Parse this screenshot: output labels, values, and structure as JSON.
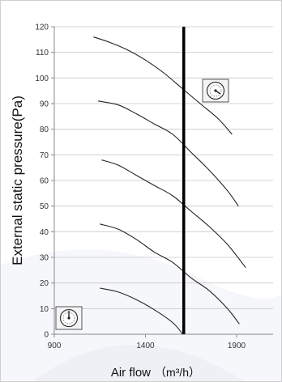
{
  "chart_data": {
    "type": "line",
    "title": "",
    "xlabel": "Air flow",
    "xlabel_unit": "（m³/h）",
    "ylabel": "External static pressure(Pa)",
    "xlim": [
      900,
      2100
    ],
    "ylim": [
      0,
      120
    ],
    "xticks": [
      "900",
      "1400",
      "1900"
    ],
    "xtick_values": [
      900,
      1400,
      1900
    ],
    "yticks": [
      "0",
      "10",
      "20",
      "30",
      "40",
      "50",
      "60",
      "70",
      "80",
      "90",
      "100",
      "110",
      "120"
    ],
    "ytick_values": [
      0,
      10,
      20,
      30,
      40,
      50,
      60,
      70,
      80,
      90,
      100,
      110,
      120
    ],
    "grid": "horizontal",
    "legend": "none",
    "series": [
      {
        "x": [
          1115,
          1200,
          1300,
          1400,
          1500,
          1600,
          1700,
          1800,
          1875
        ],
        "y": [
          116,
          114,
          111,
          107,
          102,
          96,
          90,
          84,
          78
        ]
      },
      {
        "x": [
          1140,
          1250,
          1350,
          1450,
          1550,
          1650,
          1750,
          1850,
          1910
        ],
        "y": [
          91,
          89.5,
          86,
          82,
          78,
          71,
          64,
          56,
          50
        ]
      },
      {
        "x": [
          1160,
          1250,
          1350,
          1450,
          1550,
          1650,
          1750,
          1850,
          1950
        ],
        "y": [
          68,
          66,
          62,
          58,
          54,
          48,
          42,
          35,
          26
        ]
      },
      {
        "x": [
          1150,
          1250,
          1350,
          1450,
          1550,
          1650,
          1750,
          1850,
          1915
        ],
        "y": [
          43,
          41,
          37,
          32,
          28,
          22,
          17,
          10,
          4
        ]
      },
      {
        "x": [
          1150,
          1250,
          1350,
          1450,
          1550,
          1605
        ],
        "y": [
          18,
          16.5,
          13.5,
          9.5,
          4.5,
          0
        ]
      }
    ],
    "reference_line_x": 1610
  },
  "colors": {
    "curve": "#222222",
    "reference_line": "#000000",
    "grid": "#c8c8c8",
    "axis": "#888888"
  },
  "icons": {
    "top_right": "fan-dial-icon",
    "bottom_left": "fan-dial-icon"
  }
}
